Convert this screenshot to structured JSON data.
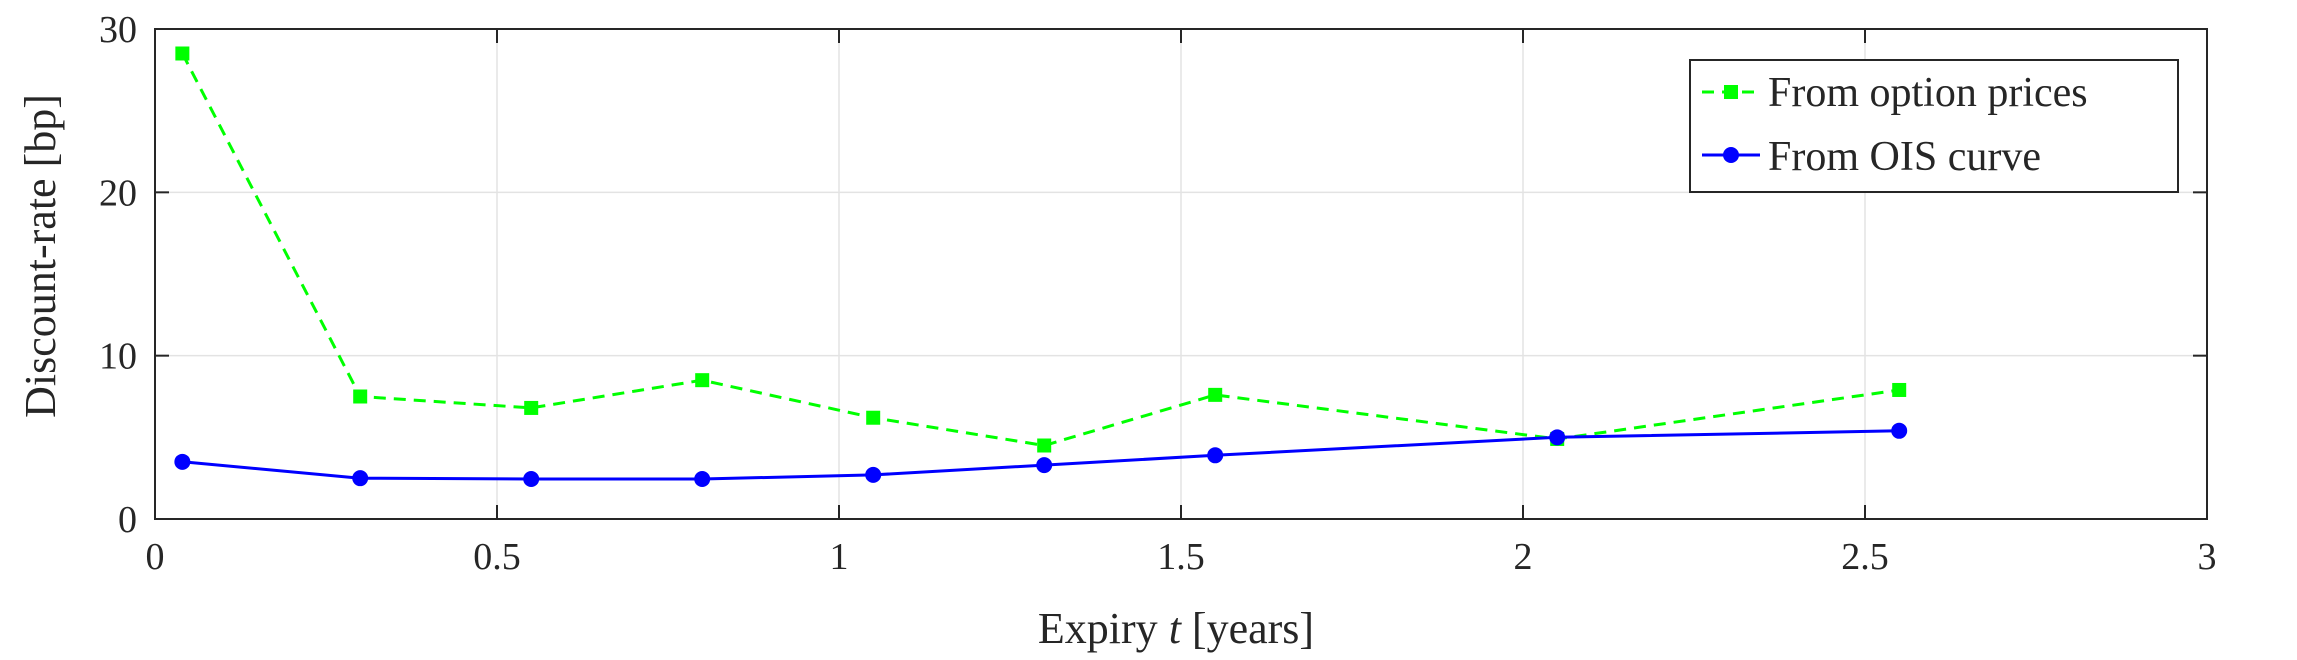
{
  "chart_data": {
    "type": "line",
    "xlabel_prefix": "Expiry ",
    "xlabel_var": "t",
    "xlabel_suffix": " [years]",
    "ylabel": "Discount-rate [bp]",
    "xlim": [
      0,
      3
    ],
    "ylim": [
      0,
      30
    ],
    "xticks": [
      0,
      0.5,
      1,
      1.5,
      2,
      2.5,
      3
    ],
    "xtick_labels": [
      "0",
      "0.5",
      "1",
      "1.5",
      "2",
      "2.5",
      "3"
    ],
    "yticks": [
      0,
      10,
      20,
      30
    ],
    "ytick_labels": [
      "0",
      "10",
      "20",
      "30"
    ],
    "grid": true,
    "legend_position": "top-right",
    "series": [
      {
        "name": "From option prices",
        "color": "#00ff00",
        "line_style": "dashed",
        "marker": "square",
        "x": [
          0.04,
          0.3,
          0.55,
          0.8,
          1.05,
          1.3,
          1.55,
          2.05,
          2.55
        ],
        "y": [
          28.5,
          7.5,
          6.8,
          8.5,
          6.2,
          4.5,
          7.6,
          4.9,
          7.9
        ]
      },
      {
        "name": "From OIS curve",
        "color": "#0000ff",
        "line_style": "solid",
        "marker": "circle",
        "x": [
          0.04,
          0.3,
          0.55,
          0.8,
          1.05,
          1.3,
          1.55,
          2.05,
          2.55
        ],
        "y": [
          3.5,
          2.5,
          2.45,
          2.45,
          2.7,
          3.3,
          3.9,
          5.0,
          5.4
        ]
      }
    ]
  }
}
